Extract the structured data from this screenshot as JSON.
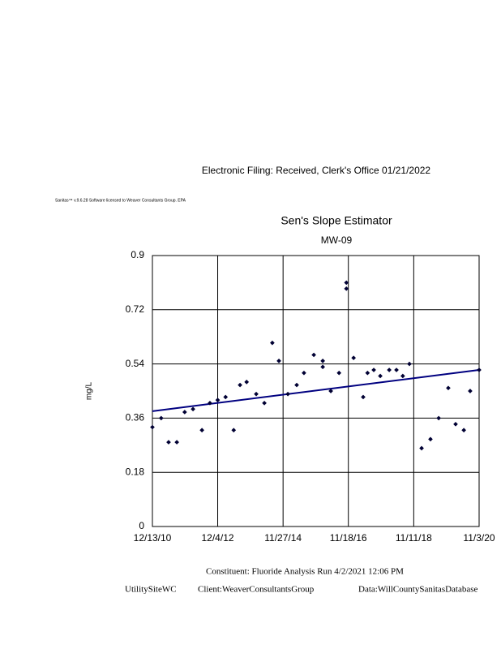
{
  "header": {
    "filing": "Electronic     Filing:     Received,     Clerk's     Office     01/21/2022",
    "license": "Sanitas™   v.9.6.28   Software   licensed   to   Weaver   Consultants   Group.   EPA"
  },
  "chart_data": {
    "type": "scatter",
    "title": "Sen's Slope Estimator",
    "subtitle": "MW-09",
    "y_label": "mg/L",
    "x": [
      "12/13/10",
      "3/20/11",
      "6/10/11",
      "9/9/11",
      "12/5/11",
      "3/6/12",
      "6/13/12",
      "9/9/12",
      "12/4/12",
      "3/1/13",
      "5/30/13",
      "8/8/13",
      "10/20/13",
      "2/3/14",
      "5/4/14",
      "7/31/14",
      "10/12/14",
      "1/19/15",
      "4/27/15",
      "7/16/15",
      "11/2/15",
      "2/9/16",
      "2/9/16",
      "5/8/16",
      "8/7/16",
      "10/27/16",
      "10/27/16",
      "1/15/17",
      "5/1/17",
      "6/18/17",
      "8/26/17",
      "11/6/17",
      "2/13/18",
      "5/4/18",
      "7/13/18",
      "9/24/18",
      "2/6/19",
      "5/15/19",
      "8/14/19",
      "11/28/19",
      "2/17/20",
      "5/18/20",
      "7/27/20",
      "11/3/20"
    ],
    "values": [
      0.33,
      0.36,
      0.28,
      0.28,
      0.38,
      0.39,
      0.32,
      0.41,
      0.42,
      0.43,
      0.32,
      0.47,
      0.48,
      0.44,
      0.41,
      0.61,
      0.55,
      0.44,
      0.47,
      0.51,
      0.57,
      0.55,
      0.53,
      0.45,
      0.51,
      0.81,
      0.79,
      0.56,
      0.43,
      0.51,
      0.52,
      0.5,
      0.52,
      0.52,
      0.5,
      0.54,
      0.26,
      0.29,
      0.36,
      0.46,
      0.34,
      0.32,
      0.45,
      0.52
    ],
    "color": "#000033",
    "trend_line": {
      "x": [
        "12/13/10",
        "11/3/20"
      ],
      "values": [
        0.383,
        0.52
      ],
      "color": "#000080"
    },
    "xlim": [
      "12/13/10",
      "11/3/20"
    ],
    "xticks": [
      "12/13/10",
      "12/4/12",
      "11/27/14",
      "11/18/16",
      "11/11/18",
      "11/3/20"
    ],
    "ylim": [
      0,
      0.9
    ],
    "yticks": [
      0,
      0.18,
      0.36,
      0.54,
      0.72,
      0.9
    ],
    "grid": true
  },
  "footer": {
    "run": "Constituent:       Fluoride       Analysis    Run    4/2/2021      12:06      PM",
    "site": "UtilitySiteWC",
    "client": "Client:WeaverConsultantsGroup",
    "data": "Data:WillCountySanitasDatabase"
  }
}
